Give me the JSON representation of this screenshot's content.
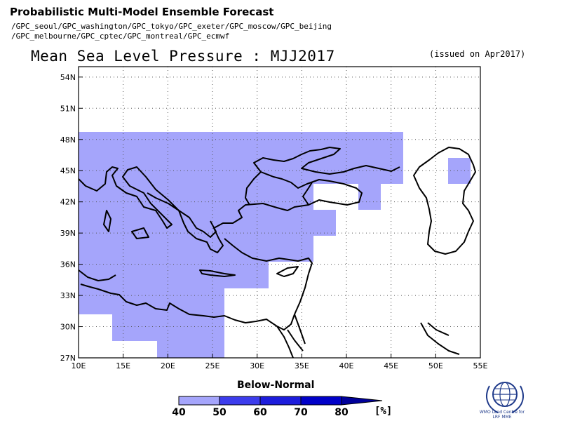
{
  "header": {
    "title": "Probabilistic Multi-Model Ensemble Forecast",
    "centers_line1": "/GPC_seoul/GPC_washington/GPC_tokyo/GPC_exeter/GPC_moscow/GPC_beijing",
    "centers_line2": "/GPC_melbourne/GPC_cptec/GPC_montreal/GPC_ecmwf"
  },
  "map": {
    "title": "Mean Sea Level Pressure : MJJ2017",
    "issued": "(issued on Apr2017)",
    "lon_range": [
      10,
      55
    ],
    "lat_range": [
      27,
      55
    ],
    "lat_ticks": [
      "27N",
      "30N",
      "33N",
      "36N",
      "39N",
      "42N",
      "45N",
      "48N",
      "51N",
      "54N"
    ],
    "lon_ticks": [
      "10E",
      "15E",
      "20E",
      "25E",
      "30E",
      "35E",
      "40E",
      "45E",
      "50E",
      "55E"
    ],
    "below_normal_category": "40-50",
    "colors": {
      "below_40_50": "#a5a5fb",
      "below_50_60": "#3c3cec",
      "below_60_70": "#1c1cdc",
      "below_70_80": "#0000c8",
      "below_80_plus": "#00009a",
      "coastline": "#000000",
      "grid": "#555555"
    }
  },
  "legend": {
    "title": "Below-Normal",
    "labels": [
      "40",
      "50",
      "60",
      "70",
      "80"
    ],
    "unit": "[%]"
  },
  "logo": {
    "text_line1": "WMO Lead Centre for",
    "text_line2": "LRF MME"
  }
}
